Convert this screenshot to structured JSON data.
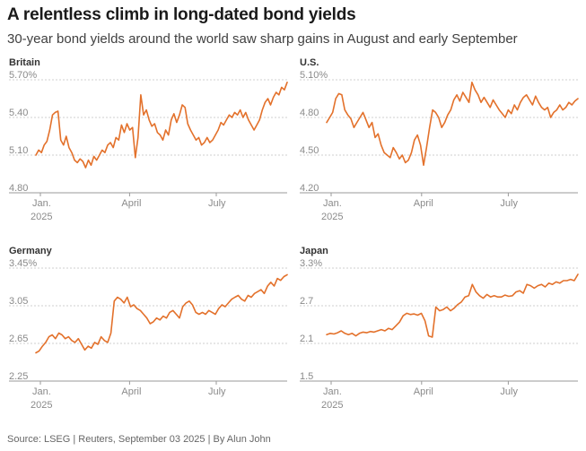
{
  "header": {
    "title": "A relentless climb in long-dated bond yields",
    "subtitle": "30-year bond yields around the world saw sharp gains in August and early September"
  },
  "footer": {
    "source": "Source: LSEG | Reuters, September 03 2025 | By Alun John"
  },
  "colors": {
    "series": "#e3712b",
    "grid": "#cfcfcf",
    "text": "#404040"
  },
  "chart_data": [
    {
      "type": "line",
      "title": "Britain",
      "x_ticks": [
        {
          "label": "Jan.",
          "sub": "2025",
          "pos": 0
        },
        {
          "label": "April",
          "sub": "",
          "pos": 0.355
        },
        {
          "label": "July",
          "sub": "",
          "pos": 0.7
        }
      ],
      "y_ticks": [
        "5.70%",
        "5.40",
        "5.10",
        "4.80"
      ],
      "ylim": [
        4.8,
        5.7
      ],
      "series": [
        {
          "name": "Britain 30Y",
          "values": [
            5.1,
            5.14,
            5.12,
            5.18,
            5.21,
            5.3,
            5.42,
            5.44,
            5.45,
            5.22,
            5.18,
            5.25,
            5.16,
            5.12,
            5.06,
            5.04,
            5.07,
            5.05,
            5.0,
            5.06,
            5.02,
            5.09,
            5.06,
            5.1,
            5.14,
            5.12,
            5.18,
            5.2,
            5.16,
            5.24,
            5.22,
            5.34,
            5.28,
            5.35,
            5.3,
            5.32,
            5.08,
            5.24,
            5.58,
            5.42,
            5.46,
            5.38,
            5.33,
            5.35,
            5.28,
            5.26,
            5.22,
            5.3,
            5.26,
            5.38,
            5.43,
            5.36,
            5.42,
            5.5,
            5.48,
            5.35,
            5.3,
            5.26,
            5.22,
            5.24,
            5.18,
            5.2,
            5.24,
            5.2,
            5.22,
            5.26,
            5.3,
            5.36,
            5.34,
            5.38,
            5.42,
            5.4,
            5.44,
            5.42,
            5.46,
            5.4,
            5.44,
            5.38,
            5.34,
            5.3,
            5.34,
            5.38,
            5.46,
            5.52,
            5.55,
            5.5,
            5.56,
            5.6,
            5.58,
            5.64,
            5.62,
            5.68
          ]
        }
      ]
    },
    {
      "type": "line",
      "title": "U.S.",
      "x_ticks": [
        {
          "label": "Jan.",
          "sub": "2025",
          "pos": 0
        },
        {
          "label": "April",
          "sub": "",
          "pos": 0.36
        },
        {
          "label": "July",
          "sub": "",
          "pos": 0.705
        }
      ],
      "y_ticks": [
        "5.10%",
        "4.80",
        "4.50",
        "4.20"
      ],
      "ylim": [
        4.2,
        5.1
      ],
      "series": [
        {
          "name": "U.S. 30Y",
          "values": [
            4.76,
            4.8,
            4.84,
            4.95,
            4.99,
            4.98,
            4.86,
            4.82,
            4.79,
            4.72,
            4.76,
            4.8,
            4.84,
            4.78,
            4.72,
            4.76,
            4.64,
            4.67,
            4.58,
            4.52,
            4.5,
            4.48,
            4.56,
            4.52,
            4.47,
            4.5,
            4.44,
            4.46,
            4.52,
            4.62,
            4.66,
            4.58,
            4.42,
            4.56,
            4.72,
            4.86,
            4.84,
            4.8,
            4.72,
            4.76,
            4.82,
            4.86,
            4.94,
            4.98,
            4.93,
            5.0,
            4.96,
            4.92,
            5.08,
            5.02,
            4.98,
            4.92,
            4.96,
            4.92,
            4.88,
            4.94,
            4.9,
            4.86,
            4.83,
            4.8,
            4.86,
            4.83,
            4.9,
            4.86,
            4.92,
            4.96,
            4.98,
            4.94,
            4.9,
            4.97,
            4.92,
            4.88,
            4.86,
            4.88,
            4.8,
            4.84,
            4.86,
            4.9,
            4.86,
            4.88,
            4.92,
            4.9,
            4.93,
            4.95
          ]
        }
      ]
    },
    {
      "type": "line",
      "title": "Germany",
      "x_ticks": [
        {
          "label": "Jan.",
          "sub": "2025",
          "pos": 0
        },
        {
          "label": "April",
          "sub": "",
          "pos": 0.355
        },
        {
          "label": "July",
          "sub": "",
          "pos": 0.7
        }
      ],
      "y_ticks": [
        "3.45%",
        "3.05",
        "2.65",
        "2.25"
      ],
      "ylim": [
        2.25,
        3.45
      ],
      "series": [
        {
          "name": "Germany 30Y",
          "values": [
            2.55,
            2.57,
            2.62,
            2.66,
            2.72,
            2.74,
            2.7,
            2.76,
            2.74,
            2.7,
            2.72,
            2.68,
            2.66,
            2.7,
            2.64,
            2.58,
            2.62,
            2.6,
            2.66,
            2.64,
            2.72,
            2.68,
            2.66,
            2.76,
            3.1,
            3.14,
            3.12,
            3.08,
            3.14,
            3.04,
            3.06,
            3.02,
            3.0,
            2.96,
            2.92,
            2.86,
            2.88,
            2.92,
            2.9,
            2.94,
            2.92,
            2.98,
            3.0,
            2.96,
            2.92,
            3.04,
            3.08,
            3.1,
            3.06,
            2.98,
            2.96,
            2.98,
            2.96,
            3.0,
            2.98,
            2.96,
            3.02,
            3.06,
            3.04,
            3.08,
            3.12,
            3.14,
            3.16,
            3.12,
            3.1,
            3.16,
            3.14,
            3.18,
            3.2,
            3.22,
            3.18,
            3.26,
            3.3,
            3.26,
            3.34,
            3.32,
            3.36,
            3.38
          ]
        }
      ]
    },
    {
      "type": "line",
      "title": "Japan",
      "x_ticks": [
        {
          "label": "Jan.",
          "sub": "2025",
          "pos": 0
        },
        {
          "label": "April",
          "sub": "",
          "pos": 0.36
        },
        {
          "label": "July",
          "sub": "",
          "pos": 0.705
        }
      ],
      "y_ticks": [
        "3.3%",
        "2.7",
        "2.1",
        "1.5"
      ],
      "ylim": [
        1.5,
        3.3
      ],
      "series": [
        {
          "name": "Japan 30Y",
          "values": [
            2.24,
            2.26,
            2.25,
            2.27,
            2.3,
            2.26,
            2.24,
            2.26,
            2.22,
            2.26,
            2.28,
            2.27,
            2.29,
            2.28,
            2.3,
            2.32,
            2.3,
            2.34,
            2.32,
            2.38,
            2.44,
            2.54,
            2.58,
            2.56,
            2.57,
            2.55,
            2.58,
            2.46,
            2.22,
            2.2,
            2.68,
            2.62,
            2.64,
            2.68,
            2.62,
            2.66,
            2.72,
            2.76,
            2.84,
            2.86,
            3.04,
            2.92,
            2.86,
            2.82,
            2.88,
            2.84,
            2.86,
            2.84,
            2.84,
            2.87,
            2.85,
            2.86,
            2.92,
            2.94,
            2.9,
            3.04,
            3.02,
            2.98,
            3.02,
            3.04,
            3.0,
            3.06,
            3.04,
            3.08,
            3.06,
            3.1,
            3.1,
            3.12,
            3.1,
            3.2
          ]
        }
      ]
    }
  ]
}
